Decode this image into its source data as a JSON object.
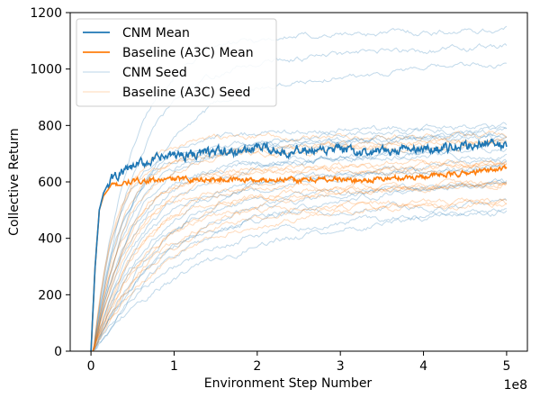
{
  "chart_data": {
    "type": "line",
    "xlabel": "Environment Step Number",
    "ylabel": "Collective Return",
    "x_offset_text": "1e8",
    "xlim": [
      -0.25,
      5.25
    ],
    "ylim": [
      0,
      1200
    ],
    "xticks": [
      0,
      1,
      2,
      3,
      4,
      5
    ],
    "xtick_labels": [
      "0",
      "1",
      "2",
      "3",
      "4",
      "5"
    ],
    "yticks": [
      0,
      200,
      400,
      600,
      800,
      1000,
      1200
    ],
    "ytick_labels": [
      "0",
      "200",
      "400",
      "600",
      "800",
      "1000",
      "1200"
    ],
    "grid": false,
    "legend": {
      "position": "top-left",
      "entries": [
        {
          "label": "CNM Mean",
          "color": "#1f77b4",
          "alpha": 1
        },
        {
          "label": "Baseline (A3C) Mean",
          "color": "#ff7f0e",
          "alpha": 1
        },
        {
          "label": "CNM Seed",
          "color": "#1f77b4",
          "alpha": 0.3
        },
        {
          "label": "Baseline (A3C) Seed",
          "color": "#ff7f0e",
          "alpha": 0.3
        }
      ]
    },
    "series": [
      {
        "name": "CNM Mean",
        "color": "#1f77b4",
        "x": [
          0,
          0.05,
          0.1,
          0.15,
          0.2,
          0.25,
          0.3,
          0.4,
          0.5,
          0.6,
          0.8,
          1.0,
          1.25,
          1.5,
          1.75,
          2.0,
          2.25,
          2.5,
          2.75,
          3.0,
          3.25,
          3.5,
          3.75,
          4.0,
          4.25,
          4.5,
          4.75,
          5.0
        ],
        "y": [
          0,
          300,
          500,
          560,
          590,
          610,
          620,
          635,
          650,
          665,
          680,
          695,
          700,
          705,
          705,
          720,
          710,
          715,
          705,
          715,
          700,
          705,
          715,
          715,
          720,
          725,
          740,
          730
        ]
      },
      {
        "name": "Baseline (A3C) Mean",
        "color": "#ff7f0e",
        "x": [
          0,
          0.05,
          0.1,
          0.15,
          0.2,
          0.25,
          0.3,
          0.4,
          0.5,
          0.6,
          0.8,
          1.0,
          1.25,
          1.5,
          1.75,
          2.0,
          2.25,
          2.5,
          2.75,
          3.0,
          3.25,
          3.5,
          3.75,
          4.0,
          4.25,
          4.5,
          4.75,
          5.0
        ],
        "y": [
          0,
          300,
          500,
          550,
          570,
          585,
          590,
          595,
          600,
          605,
          605,
          610,
          610,
          608,
          610,
          605,
          610,
          605,
          610,
          608,
          605,
          610,
          615,
          620,
          625,
          630,
          640,
          650
        ]
      }
    ]
  }
}
